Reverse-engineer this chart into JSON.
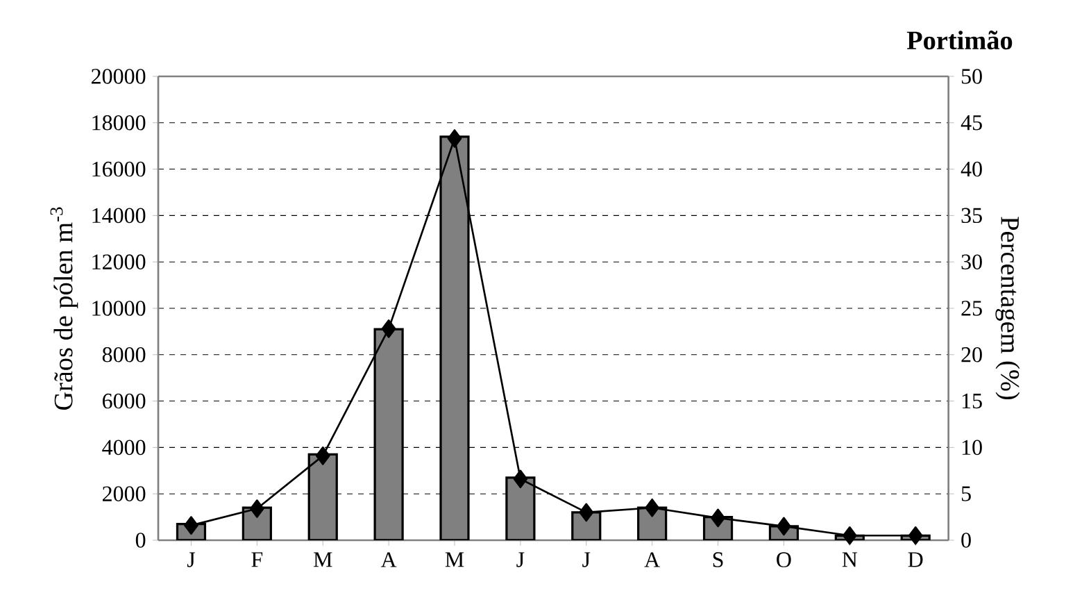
{
  "chart_data": {
    "type": "bar",
    "title": "Portimão",
    "ylabel": "Grãos de pólen m$^{-3}$",
    "y2label": "Percentagem (%)",
    "categories": [
      "J",
      "F",
      "M",
      "A",
      "M",
      "J",
      "J",
      "A",
      "S",
      "O",
      "N",
      "D"
    ],
    "series": [
      {
        "color": "#808080",
        "values": [
          700,
          1400,
          3700,
          9100,
          17400,
          2700,
          1200,
          1400,
          1000,
          600,
          200,
          200
        ]
      },
      {
        "type": "line",
        "axis": "y2",
        "color": "#000000",
        "values": [
          1.6,
          3.4,
          9.1,
          22.8,
          43.3,
          6.6,
          3.0,
          3.5,
          2.4,
          1.5,
          0.5,
          0.5
        ]
      }
    ],
    "ylim": [
      0,
      20000
    ],
    "yticks": [
      0,
      2000,
      4000,
      6000,
      8000,
      10000,
      12000,
      14000,
      16000,
      18000,
      20000
    ],
    "y2lim": [
      0,
      50
    ],
    "y2ticks": [
      0,
      5,
      10,
      15,
      20,
      25,
      30,
      35,
      40,
      45,
      50
    ],
    "grid": "y",
    "marker": "diamond"
  }
}
